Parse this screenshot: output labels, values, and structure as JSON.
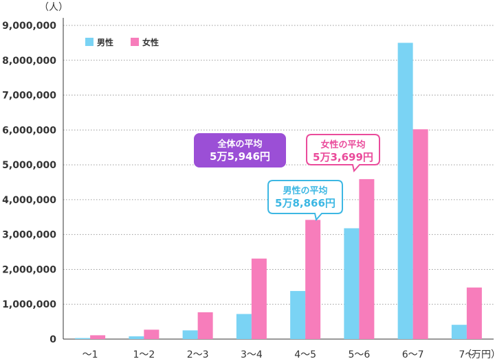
{
  "chart_data": {
    "type": "bar",
    "y_unit": "（人）",
    "x_unit": "（万円）",
    "categories": [
      "〜1",
      "1〜2",
      "2〜3",
      "3〜4",
      "4〜5",
      "5〜6",
      "6〜7",
      "7〜"
    ],
    "series": [
      {
        "name": "男性",
        "color": "#7ad3f4",
        "values": [
          30000,
          80000,
          250000,
          720000,
          1380000,
          3180000,
          8500000,
          410000
        ]
      },
      {
        "name": "女性",
        "color": "#f77dbb",
        "values": [
          110000,
          270000,
          770000,
          2310000,
          3420000,
          4590000,
          6020000,
          1480000
        ]
      }
    ],
    "ylim": [
      0,
      9000000
    ],
    "yticks": [
      "0",
      "1,000,000",
      "2,000,000",
      "3,000,000",
      "4,000,000",
      "5,000,000",
      "6,000,000",
      "7,000,000",
      "8,000,000",
      "9,000,000"
    ],
    "grid": true,
    "legend_position": "top-left",
    "annotations": [
      {
        "id": "overall",
        "label": "全体の平均",
        "value": "5万5,946円",
        "style": "filled",
        "color": "#9b4fd6"
      },
      {
        "id": "male",
        "label": "男性の平均",
        "value": "5万8,866円",
        "style": "outline",
        "color": "#3cb7e3"
      },
      {
        "id": "female",
        "label": "女性の平均",
        "value": "5万3,699円",
        "style": "outline",
        "color": "#ea4b9b"
      }
    ]
  }
}
